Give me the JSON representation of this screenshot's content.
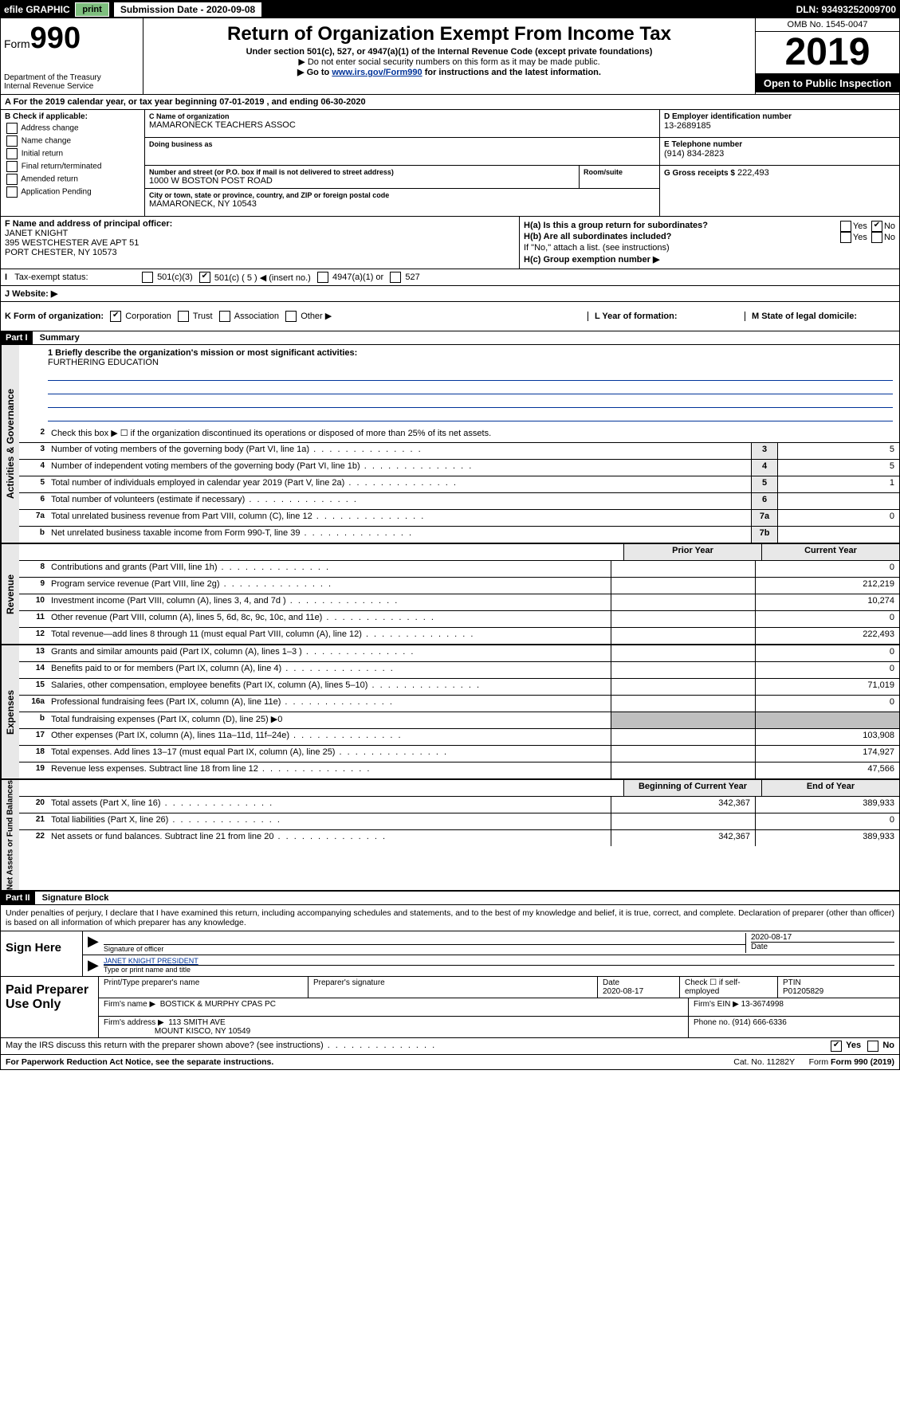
{
  "top_bar": {
    "efile": "efile GRAPHIC",
    "print": "print",
    "submission_label": "Submission Date - 2020-09-08",
    "dln": "DLN: 93493252009700"
  },
  "header": {
    "form_label": "Form",
    "form_number": "990",
    "dept": "Department of the Treasury",
    "irs": "Internal Revenue Service",
    "title": "Return of Organization Exempt From Income Tax",
    "subtitle": "Under section 501(c), 527, or 4947(a)(1) of the Internal Revenue Code (except private foundations)",
    "note1": "▶ Do not enter social security numbers on this form as it may be made public.",
    "note2_pre": "▶ Go to ",
    "note2_link": "www.irs.gov/Form990",
    "note2_post": " for instructions and the latest information.",
    "omb": "OMB No. 1545-0047",
    "year": "2019",
    "open": "Open to Public Inspection"
  },
  "period_row": "A For the 2019 calendar year, or tax year beginning 07-01-2019    , and ending 06-30-2020",
  "box_b": {
    "label": "B Check if applicable:",
    "addr": "Address change",
    "name": "Name change",
    "initial": "Initial return",
    "final": "Final return/terminated",
    "amended": "Amended return",
    "pending": "Application Pending"
  },
  "box_c": {
    "label": "C Name of organization",
    "org": "MAMARONECK TEACHERS ASSOC",
    "dba_label": "Doing business as",
    "street_label": "Number and street (or P.O. box if mail is not delivered to street address)",
    "street": "1000 W BOSTON POST ROAD",
    "room_label": "Room/suite",
    "city_label": "City or town, state or province, country, and ZIP or foreign postal code",
    "city": "MAMARONECK, NY  10543"
  },
  "box_d": {
    "label": "D Employer identification number",
    "value": "13-2689185"
  },
  "box_e": {
    "label": "E Telephone number",
    "value": "(914) 834-2823"
  },
  "box_g": {
    "label": "G Gross receipts $",
    "value": "222,493"
  },
  "box_f": {
    "label": "F  Name and address of principal officer:",
    "name": "JANET KNIGHT",
    "addr1": "395 WESTCHESTER AVE APT 51",
    "addr2": "PORT CHESTER, NY  10573"
  },
  "box_h": {
    "ha": "H(a)  Is this a group return for subordinates?",
    "hb": "H(b)  Are all subordinates included?",
    "hb_note": "If \"No,\" attach a list. (see instructions)",
    "hc": "H(c)  Group exemption number ▶",
    "yes": "Yes",
    "no": "No"
  },
  "exempt": {
    "label": "Tax-exempt status:",
    "c3": "501(c)(3)",
    "c_insert": "501(c) ( 5 ) ◀ (insert no.)",
    "a1": "4947(a)(1) or",
    "five27": "527"
  },
  "website": {
    "label": "J   Website: ▶"
  },
  "korg": {
    "label": "K Form of organization:",
    "corp": "Corporation",
    "trust": "Trust",
    "assoc": "Association",
    "other": "Other ▶",
    "l": "L Year of formation:",
    "m": "M State of legal domicile:"
  },
  "part1": {
    "header": "Part I",
    "title": "Summary",
    "briefly_label": "1   Briefly describe the organization's mission or most significant activities:",
    "briefly_value": "FURTHERING EDUCATION"
  },
  "governance": {
    "label": "Activities & Governance",
    "line2": "Check this box ▶ ☐  if the organization discontinued its operations or disposed of more than 25% of its net assets.",
    "line3": {
      "text": "Number of voting members of the governing body (Part VI, line 1a)",
      "num": "3",
      "val": "5"
    },
    "line4": {
      "text": "Number of independent voting members of the governing body (Part VI, line 1b)",
      "num": "4",
      "val": "5"
    },
    "line5": {
      "text": "Total number of individuals employed in calendar year 2019 (Part V, line 2a)",
      "num": "5",
      "val": "1"
    },
    "line6": {
      "text": "Total number of volunteers (estimate if necessary)",
      "num": "6",
      "val": ""
    },
    "line7a": {
      "text": "Total unrelated business revenue from Part VIII, column (C), line 12",
      "num": "7a",
      "val": "0"
    },
    "line7b": {
      "text": "Net unrelated business taxable income from Form 990-T, line 39",
      "num": "7b",
      "val": ""
    }
  },
  "revenue": {
    "label": "Revenue",
    "prior": "Prior Year",
    "current": "Current Year",
    "lines": [
      {
        "n": "8",
        "t": "Contributions and grants (Part VIII, line 1h)",
        "p": "",
        "c": "0"
      },
      {
        "n": "9",
        "t": "Program service revenue (Part VIII, line 2g)",
        "p": "",
        "c": "212,219"
      },
      {
        "n": "10",
        "t": "Investment income (Part VIII, column (A), lines 3, 4, and 7d )",
        "p": "",
        "c": "10,274"
      },
      {
        "n": "11",
        "t": "Other revenue (Part VIII, column (A), lines 5, 6d, 8c, 9c, 10c, and 11e)",
        "p": "",
        "c": "0"
      },
      {
        "n": "12",
        "t": "Total revenue—add lines 8 through 11 (must equal Part VIII, column (A), line 12)",
        "p": "",
        "c": "222,493"
      }
    ]
  },
  "expenses": {
    "label": "Expenses",
    "lines": [
      {
        "n": "13",
        "t": "Grants and similar amounts paid (Part IX, column (A), lines 1–3 )",
        "p": "",
        "c": "0"
      },
      {
        "n": "14",
        "t": "Benefits paid to or for members (Part IX, column (A), line 4)",
        "p": "",
        "c": "0"
      },
      {
        "n": "15",
        "t": "Salaries, other compensation, employee benefits (Part IX, column (A), lines 5–10)",
        "p": "",
        "c": "71,019"
      },
      {
        "n": "16a",
        "t": "Professional fundraising fees (Part IX, column (A), line 11e)",
        "p": "",
        "c": "0"
      }
    ],
    "line_b": "Total fundraising expenses (Part IX, column (D), line 25) ▶0",
    "lines2": [
      {
        "n": "17",
        "t": "Other expenses (Part IX, column (A), lines 11a–11d, 11f–24e)",
        "p": "",
        "c": "103,908"
      },
      {
        "n": "18",
        "t": "Total expenses. Add lines 13–17 (must equal Part IX, column (A), line 25)",
        "p": "",
        "c": "174,927"
      },
      {
        "n": "19",
        "t": "Revenue less expenses. Subtract line 18 from line 12",
        "p": "",
        "c": "47,566"
      }
    ]
  },
  "netassets": {
    "label": "Net Assets or Fund Balances",
    "begin": "Beginning of Current Year",
    "end": "End of Year",
    "lines": [
      {
        "n": "20",
        "t": "Total assets (Part X, line 16)",
        "p": "342,367",
        "c": "389,933"
      },
      {
        "n": "21",
        "t": "Total liabilities (Part X, line 26)",
        "p": "",
        "c": "0"
      },
      {
        "n": "22",
        "t": "Net assets or fund balances. Subtract line 21 from line 20",
        "p": "342,367",
        "c": "389,933"
      }
    ]
  },
  "part2": {
    "header": "Part II",
    "title": "Signature Block",
    "perjury": "Under penalties of perjury, I declare that I have examined this return, including accompanying schedules and statements, and to the best of my knowledge and belief, it is true, correct, and complete. Declaration of preparer (other than officer) is based on all information of which preparer has any knowledge."
  },
  "sign": {
    "label": "Sign Here",
    "sig_officer": "Signature of officer",
    "date": "2020-08-17",
    "date_label": "Date",
    "name": "JANET KNIGHT  PRESIDENT",
    "name_label": "Type or print name and title"
  },
  "paid": {
    "label": "Paid Preparer Use Only",
    "h_name": "Print/Type preparer's name",
    "h_sig": "Preparer's signature",
    "h_date": "Date",
    "h_date_val": "2020-08-17",
    "h_check": "Check ☐ if self-employed",
    "h_ptin": "PTIN",
    "ptin": "P01205829",
    "firm_name_label": "Firm's name      ▶",
    "firm_name": "BOSTICK & MURPHY CPAS PC",
    "firm_ein_label": "Firm's EIN ▶",
    "firm_ein": "13-3674998",
    "firm_addr_label": "Firm's address  ▶",
    "firm_addr1": "113 SMITH AVE",
    "firm_addr2": "MOUNT KISCO, NY  10549",
    "phone_label": "Phone no.",
    "phone": "(914) 666-6336"
  },
  "discuss": {
    "text": "May the IRS discuss this return with the preparer shown above? (see instructions)",
    "yes": "Yes",
    "no": "No"
  },
  "footer": {
    "pra": "For Paperwork Reduction Act Notice, see the separate instructions.",
    "cat": "Cat. No. 11282Y",
    "form": "Form 990 (2019)"
  }
}
